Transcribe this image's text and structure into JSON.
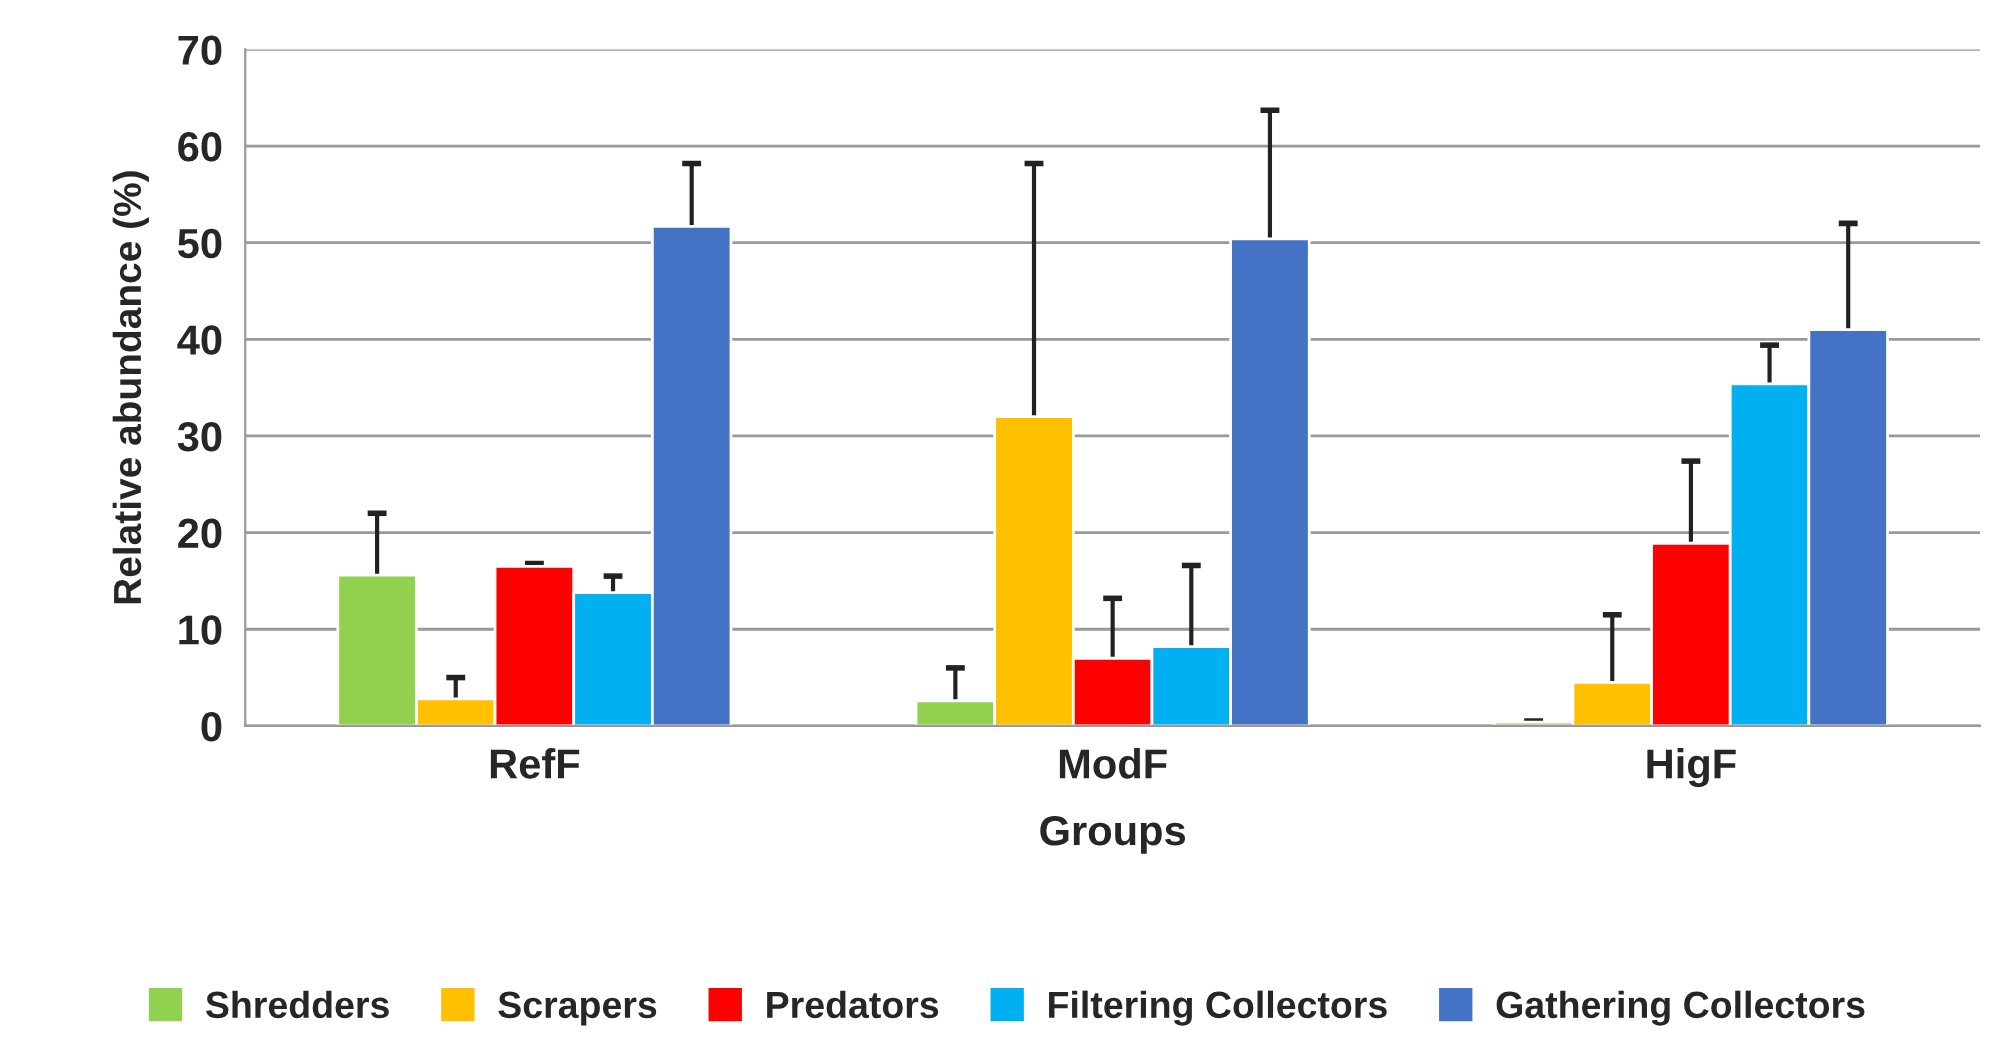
{
  "chart_data": {
    "type": "bar",
    "xlabel": "Groups",
    "ylabel": "Relative abundance (%)",
    "categories": [
      "RefF",
      "ModF",
      "HigF"
    ],
    "series": [
      {
        "name": "Shredders",
        "color": "#92d050",
        "values": [
          15.6,
          2.6,
          0.4
        ],
        "errors": [
          [
            15.6,
            22
          ],
          [
            2.6,
            6
          ],
          [
            0.4,
            0.5
          ]
        ]
      },
      {
        "name": "Scrapers",
        "color": "#ffc000",
        "values": [
          2.8,
          32,
          4.5
        ],
        "errors": [
          [
            2.8,
            5
          ],
          [
            32,
            58.2
          ],
          [
            4.5,
            11.5
          ]
        ]
      },
      {
        "name": "Predators",
        "color": "#ff0000",
        "values": [
          16.5,
          7,
          18.9
        ],
        "errors": [
          [
            16.5,
            16.8
          ],
          [
            7,
            13.2
          ],
          [
            18.9,
            27.4
          ]
        ]
      },
      {
        "name": "Filtering Collectors",
        "color": "#00b0f0",
        "values": [
          13.8,
          8.2,
          35.4
        ],
        "errors": [
          [
            13.8,
            15.5
          ],
          [
            8.2,
            16.6
          ],
          [
            35.4,
            39.4
          ]
        ]
      },
      {
        "name": "Gathering Collectors",
        "color": "#4472c4",
        "values": [
          51.7,
          50.4,
          41
        ],
        "errors": [
          [
            51.7,
            58.2
          ],
          [
            50.4,
            63.7
          ],
          [
            41,
            52
          ]
        ]
      }
    ],
    "ylim": [
      0,
      70
    ],
    "yticks": [
      0,
      10,
      20,
      30,
      40,
      50,
      60,
      70
    ],
    "grid": "y",
    "legend": "bottom",
    "marker": "square"
  }
}
